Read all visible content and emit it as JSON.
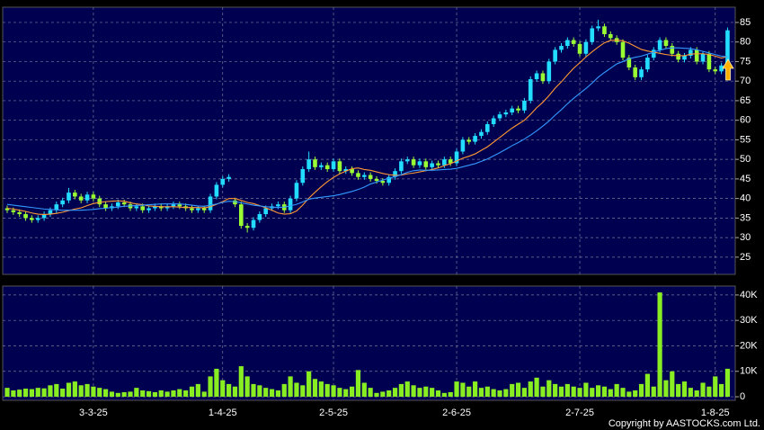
{
  "chart_data": {
    "type": "candlestick",
    "up_color": "#22ddff",
    "down_color": "#99ff33",
    "grid": true,
    "ylim": [
      20.6,
      88.9
    ],
    "yticks": [
      25,
      30,
      35,
      40,
      45,
      50,
      55,
      60,
      65,
      70,
      75,
      80,
      85
    ],
    "categories": [
      null,
      null,
      null,
      null,
      null,
      null,
      null,
      null,
      null,
      null,
      null,
      null,
      null,
      null,
      "3-3-25",
      null,
      null,
      null,
      null,
      null,
      null,
      null,
      null,
      null,
      null,
      null,
      null,
      null,
      null,
      null,
      null,
      null,
      null,
      null,
      null,
      "1-4-25",
      null,
      null,
      null,
      null,
      null,
      null,
      null,
      null,
      null,
      null,
      null,
      null,
      null,
      null,
      null,
      null,
      null,
      "2-5-25",
      null,
      null,
      null,
      null,
      null,
      null,
      null,
      null,
      null,
      null,
      null,
      null,
      null,
      null,
      null,
      null,
      null,
      null,
      null,
      "2-6-25",
      null,
      null,
      null,
      null,
      null,
      null,
      null,
      null,
      null,
      null,
      null,
      null,
      null,
      null,
      null,
      null,
      null,
      null,
      null,
      "2-7-25",
      null,
      null,
      null,
      null,
      null,
      null,
      null,
      null,
      null,
      null,
      null,
      null,
      null,
      null,
      null,
      null,
      null,
      null,
      null,
      null,
      null,
      "1-8-25",
      null,
      null
    ],
    "open": [
      37.5,
      37.0,
      36.5,
      36.0,
      35.0,
      34.5,
      35.0,
      36.0,
      37.0,
      38.5,
      39.5,
      41.5,
      40.5,
      39.5,
      41.0,
      40.0,
      38.5,
      37.5,
      38.0,
      39.0,
      38.5,
      37.5,
      38.0,
      37.0,
      37.5,
      38.0,
      37.5,
      38.0,
      38.5,
      38.0,
      37.5,
      37.0,
      37.5,
      37.0,
      40.5,
      43.5,
      45.0,
      39.5,
      38.5,
      33.0,
      32.5,
      34.5,
      36.0,
      37.5,
      38.0,
      38.5,
      37.0,
      40.0,
      44.0,
      47.5,
      50.0,
      48.0,
      48.5,
      47.5,
      49.5,
      47.0,
      47.5,
      46.5,
      45.5,
      46.0,
      45.0,
      44.5,
      44.0,
      45.5,
      47.0,
      49.5,
      50.0,
      48.5,
      49.5,
      48.0,
      49.0,
      48.5,
      50.0,
      49.0,
      52.0,
      55.0,
      54.5,
      56.0,
      57.0,
      59.0,
      60.5,
      61.5,
      62.0,
      63.0,
      62.5,
      65.0,
      70.5,
      72.0,
      70.0,
      75.0,
      78.0,
      79.0,
      80.5,
      79.5,
      77.0,
      80.0,
      83.5,
      84.0,
      82.0,
      81.0,
      80.0,
      76.0,
      73.5,
      71.0,
      73.0,
      76.0,
      78.0,
      80.5,
      79.0,
      77.0,
      75.5,
      76.5,
      78.0,
      75.0,
      77.0,
      73.0,
      72.5,
      74.0
    ],
    "high": [
      38.2,
      37.7,
      37.2,
      36.7,
      35.7,
      35.7,
      36.7,
      37.7,
      39.2,
      40.2,
      42.7,
      42.2,
      41.2,
      41.7,
      41.7,
      40.7,
      39.2,
      38.7,
      39.7,
      39.7,
      39.2,
      38.7,
      38.7,
      38.2,
      38.7,
      38.7,
      38.7,
      39.2,
      39.2,
      38.7,
      38.2,
      38.2,
      38.2,
      41.2,
      44.2,
      45.7,
      46.2,
      40.2,
      39.2,
      33.7,
      35.2,
      36.7,
      38.2,
      38.7,
      39.2,
      39.2,
      40.7,
      44.7,
      48.2,
      52.0,
      50.7,
      49.2,
      49.2,
      50.2,
      50.2,
      48.2,
      48.2,
      47.2,
      46.7,
      46.7,
      45.7,
      45.2,
      46.2,
      47.7,
      50.2,
      50.7,
      50.7,
      50.2,
      50.2,
      49.7,
      49.7,
      50.7,
      50.7,
      52.7,
      55.7,
      55.7,
      56.7,
      57.7,
      59.7,
      61.2,
      62.2,
      62.7,
      63.7,
      63.7,
      65.7,
      71.2,
      72.7,
      72.7,
      75.7,
      78.7,
      79.7,
      81.2,
      81.2,
      80.2,
      80.7,
      84.2,
      85.7,
      84.7,
      82.7,
      81.7,
      80.7,
      76.7,
      74.2,
      73.7,
      76.7,
      78.7,
      81.2,
      81.2,
      79.7,
      77.7,
      77.2,
      78.7,
      78.7,
      77.7,
      77.7,
      73.7,
      74.7,
      83.7
    ],
    "low": [
      36.3,
      35.8,
      35.3,
      34.3,
      33.8,
      33.8,
      34.3,
      35.3,
      36.3,
      37.8,
      38.8,
      39.8,
      38.8,
      38.8,
      39.3,
      37.8,
      36.8,
      36.8,
      37.3,
      37.8,
      36.8,
      36.8,
      36.3,
      36.3,
      36.8,
      36.8,
      36.8,
      37.3,
      37.3,
      36.8,
      36.3,
      36.3,
      36.3,
      36.3,
      39.8,
      42.8,
      44.3,
      37.8,
      32.3,
      31.3,
      31.8,
      33.8,
      35.3,
      36.8,
      37.3,
      36.3,
      36.3,
      39.3,
      43.3,
      46.8,
      47.3,
      47.3,
      46.8,
      46.8,
      46.3,
      46.3,
      45.8,
      44.8,
      44.8,
      44.3,
      43.8,
      43.3,
      43.3,
      44.8,
      46.3,
      48.8,
      47.8,
      47.8,
      47.3,
      47.3,
      47.8,
      47.8,
      48.3,
      48.3,
      51.3,
      53.8,
      53.8,
      55.3,
      56.3,
      58.3,
      59.8,
      60.8,
      61.3,
      61.8,
      61.8,
      64.3,
      69.8,
      69.3,
      69.3,
      74.3,
      77.3,
      78.3,
      78.8,
      76.3,
      76.3,
      79.3,
      82.8,
      81.3,
      80.3,
      79.3,
      75.3,
      72.8,
      70.3,
      70.3,
      72.3,
      75.3,
      77.3,
      78.3,
      76.3,
      74.8,
      74.8,
      75.8,
      74.3,
      74.3,
      72.3,
      71.8,
      71.8,
      73.3
    ],
    "close": [
      37.0,
      36.5,
      36.0,
      35.0,
      34.5,
      35.0,
      36.0,
      37.0,
      38.5,
      39.5,
      41.5,
      40.5,
      39.5,
      41.0,
      40.0,
      38.5,
      37.5,
      38.0,
      39.0,
      38.5,
      37.5,
      38.0,
      37.0,
      37.5,
      38.0,
      37.5,
      38.0,
      38.5,
      38.0,
      37.5,
      37.0,
      37.5,
      37.0,
      40.5,
      43.5,
      45.0,
      45.5,
      38.5,
      33.0,
      32.5,
      34.5,
      36.0,
      37.5,
      38.0,
      38.5,
      37.0,
      40.0,
      44.0,
      47.5,
      50.0,
      48.0,
      48.5,
      47.5,
      49.5,
      47.0,
      47.5,
      46.5,
      45.5,
      46.0,
      45.0,
      44.5,
      44.0,
      45.5,
      47.0,
      49.5,
      50.0,
      48.5,
      49.5,
      48.0,
      49.0,
      48.5,
      50.0,
      49.0,
      52.0,
      55.0,
      54.5,
      56.0,
      57.0,
      59.0,
      60.5,
      61.5,
      62.0,
      63.0,
      62.5,
      65.0,
      70.5,
      72.0,
      70.0,
      75.0,
      78.0,
      79.0,
      80.5,
      79.5,
      77.0,
      80.0,
      83.5,
      84.0,
      82.0,
      81.0,
      80.0,
      76.0,
      73.5,
      71.0,
      73.0,
      76.0,
      78.0,
      80.5,
      79.0,
      77.0,
      75.5,
      76.5,
      78.0,
      75.0,
      77.0,
      73.0,
      72.5,
      74.0,
      83.0
    ],
    "moving_averages": [
      {
        "color": "#ff9933",
        "values": [
          37.5,
          37.3,
          37.0,
          36.7,
          36.3,
          36.0,
          35.9,
          36.0,
          36.2,
          36.5,
          36.9,
          37.3,
          37.6,
          38.2,
          38.7,
          39.0,
          39.2,
          39.3,
          39.4,
          39.3,
          38.9,
          38.6,
          38.4,
          38.1,
          38.0,
          37.9,
          37.9,
          37.9,
          37.8,
          37.7,
          37.7,
          37.7,
          37.6,
          37.9,
          38.5,
          39.2,
          40.0,
          40.0,
          39.5,
          39.0,
          38.7,
          38.2,
          37.6,
          37.0,
          36.3,
          36.0,
          36.1,
          36.8,
          38.3,
          40.1,
          41.6,
          43.0,
          44.3,
          45.4,
          46.3,
          47.0,
          47.6,
          47.8,
          47.4,
          47.2,
          46.8,
          46.4,
          46.1,
          45.9,
          46.0,
          46.3,
          46.5,
          46.8,
          47.1,
          47.4,
          47.8,
          48.4,
          48.9,
          49.6,
          50.3,
          50.8,
          51.4,
          52.3,
          53.2,
          54.4,
          55.6,
          56.8,
          58.0,
          59.0,
          60.0,
          61.5,
          63.2,
          64.6,
          66.3,
          68.2,
          69.8,
          71.6,
          73.3,
          74.7,
          76.2,
          77.5,
          78.7,
          79.8,
          80.4,
          80.5,
          80.3,
          79.7,
          78.9,
          78.1,
          77.7,
          77.4,
          77.1,
          76.8,
          76.6,
          76.5,
          76.5,
          76.9,
          77.0,
          77.0,
          76.8,
          76.4,
          75.9,
          76.3
        ]
      },
      {
        "color": "#3399ff",
        "values": [
          38.5,
          38.3,
          38.1,
          37.9,
          37.7,
          37.5,
          37.3,
          37.2,
          37.1,
          37.0,
          37.0,
          37.0,
          37.0,
          37.1,
          37.2,
          37.4,
          37.5,
          37.7,
          37.8,
          38.0,
          38.1,
          38.2,
          38.3,
          38.4,
          38.5,
          38.6,
          38.6,
          38.6,
          38.6,
          38.5,
          38.3,
          38.1,
          38.0,
          38.3,
          38.6,
          39.0,
          39.3,
          39.2,
          38.9,
          38.6,
          38.3,
          38.1,
          37.9,
          37.8,
          37.7,
          37.8,
          38.1,
          38.5,
          39.1,
          39.8,
          40.1,
          40.3,
          40.5,
          40.7,
          41.0,
          41.4,
          41.8,
          42.3,
          42.9,
          43.7,
          44.2,
          44.7,
          45.2,
          45.6,
          46.1,
          46.7,
          47.1,
          47.3,
          47.2,
          47.2,
          47.3,
          47.4,
          47.5,
          47.7,
          48.1,
          48.5,
          48.9,
          49.5,
          50.1,
          50.9,
          51.7,
          52.6,
          53.5,
          54.3,
          55.2,
          56.2,
          57.3,
          58.5,
          59.8,
          61.3,
          62.7,
          64.2,
          65.6,
          66.9,
          68.1,
          69.5,
          71.0,
          72.2,
          73.3,
          74.4,
          75.0,
          75.7,
          76.1,
          76.4,
          76.9,
          77.4,
          77.9,
          78.3,
          78.5,
          78.5,
          78.4,
          78.3,
          78.0,
          77.6,
          77.2,
          76.8,
          76.4,
          76.2
        ]
      }
    ],
    "volume": {
      "color": "#88ee22",
      "ylim": [
        -1400,
        43500
      ],
      "yticks": [
        0,
        {
          "value": 10000,
          "label": "10K"
        },
        {
          "value": 20000,
          "label": "20K"
        },
        {
          "value": 30000,
          "label": "30K"
        },
        {
          "value": 40000,
          "label": "40K"
        }
      ],
      "values": [
        3500,
        2500,
        2800,
        3200,
        3000,
        3500,
        3300,
        4500,
        5000,
        3200,
        5500,
        6000,
        4500,
        5000,
        4000,
        3500,
        3000,
        2000,
        1500,
        1800,
        2000,
        3500,
        2500,
        2200,
        1800,
        2500,
        2000,
        2500,
        3000,
        2500,
        4000,
        5000,
        2000,
        8000,
        11000,
        6500,
        5000,
        4000,
        12000,
        8000,
        5000,
        4500,
        3500,
        3000,
        2500,
        5000,
        8000,
        5500,
        4500,
        10000,
        7000,
        6000,
        5000,
        4500,
        3500,
        3000,
        4000,
        10500,
        5500,
        3500,
        1500,
        2000,
        2500,
        3500,
        5000,
        6000,
        4500,
        3500,
        4000,
        3500,
        2500,
        1500,
        1800,
        6000,
        5500,
        4000,
        6000,
        3500,
        4000,
        3000,
        2500,
        3000,
        5000,
        5500,
        3500,
        6000,
        7500,
        4000,
        6500,
        5000,
        4000,
        5000,
        4000,
        3500,
        5500,
        3500,
        4500,
        4000,
        3000,
        5000,
        3500,
        2000,
        2500,
        5000,
        9000,
        4000,
        41000,
        6500,
        10000,
        5000,
        6000,
        3500,
        2500,
        5500,
        4000,
        8000,
        5000,
        11000
      ]
    },
    "footer": "Copyright by AASTOCKS.com Ltd."
  }
}
